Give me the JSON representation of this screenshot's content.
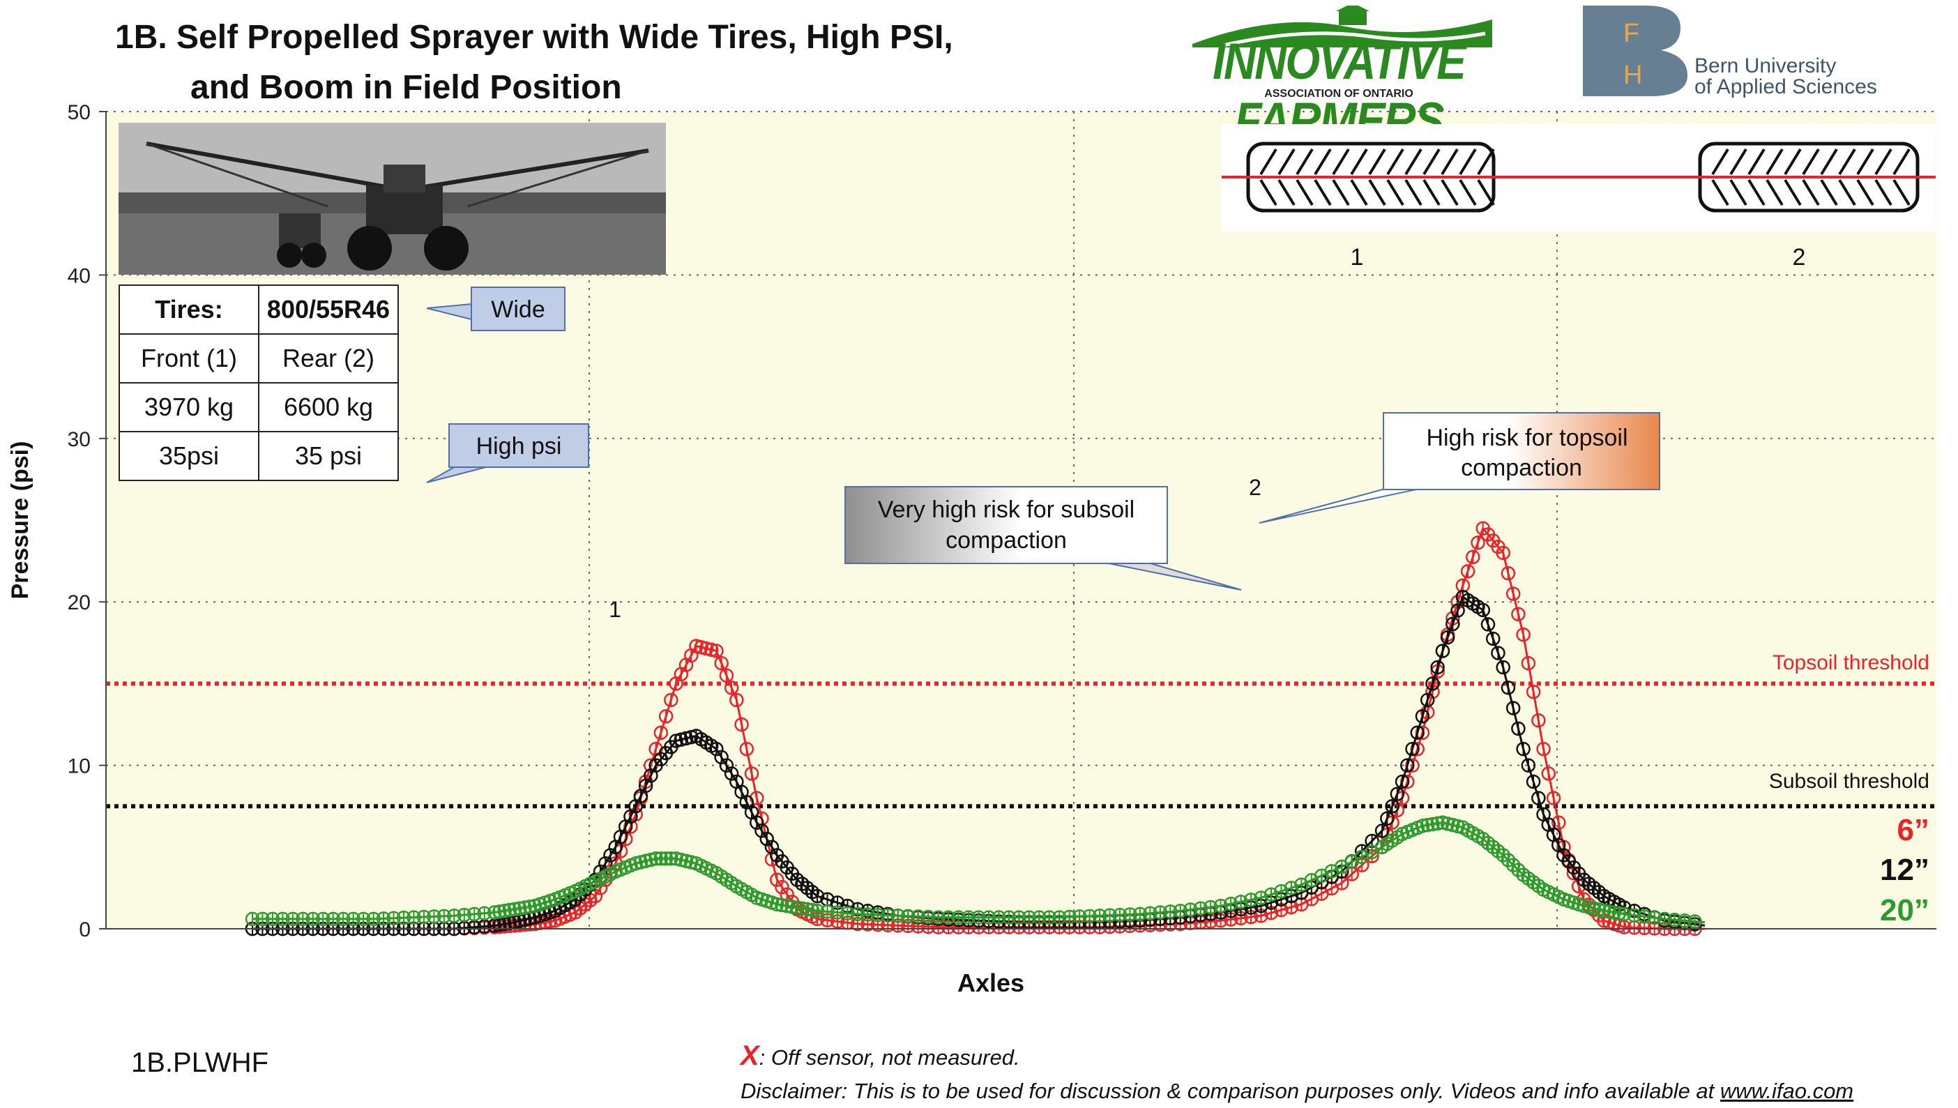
{
  "header": {
    "title_line1": "1B. Self Propelled Sprayer with Wide Tires, High PSI,",
    "title_line2": "and Boom in Field Position",
    "logo_left_main": "INNOVATIVE FARMERS",
    "logo_left_sub": "ASSOCIATION OF ONTARIO",
    "logo_right_letters": [
      "F",
      "H"
    ],
    "logo_right_line1": "Bern University",
    "logo_right_line2": "of Applied Sciences"
  },
  "table": {
    "r1c1": "Tires:",
    "r1c2": "800/55R46",
    "r2c1": "Front (1)",
    "r2c2": "Rear (2)",
    "r3c1": "3970 kg",
    "r3c2": "6600 kg",
    "r4c1": "35psi",
    "r4c2": "35 psi"
  },
  "callouts": {
    "wide": "Wide",
    "high_psi": "High psi",
    "subsoil_line1": "Very high risk for subsoil",
    "subsoil_line2": "compaction",
    "topsoil_line1": "High risk for topsoil",
    "topsoil_line2": "compaction"
  },
  "footer": {
    "code": "1B.PLWHF",
    "x_mark": "X",
    "x_note": ": Off sensor, not measured.",
    "disclaimer": "Disclaimer: This is to be used for discussion & comparison purposes only. Videos and info available at ",
    "url": "www.ifao.com"
  },
  "colors": {
    "series_6": "#e8232a",
    "series_12": "#111111",
    "series_20": "#2e9a2e",
    "plot_bg": "#fbfbe4",
    "callout_blue": "#bfcde6"
  },
  "chart_data": {
    "type": "line",
    "xlabel": "Axles",
    "ylabel": "Pressure (psi)",
    "ylim": [
      0,
      50
    ],
    "yticks": [
      0,
      10,
      20,
      30,
      40,
      50
    ],
    "y_tick_labels": [
      "0",
      "10",
      "20",
      "30",
      "40",
      "50"
    ],
    "x_axis_ticks": "none",
    "grid": "dotted",
    "peak_labels": [
      "1",
      "2"
    ],
    "axle_labels": [
      "1",
      "2"
    ],
    "thresholds": [
      {
        "label": "Topsoil threshold",
        "value": 15,
        "color": "#e8232a"
      },
      {
        "label": "Subsoil threshold",
        "value": 7.5,
        "color": "#111111"
      }
    ],
    "legend_position": "right",
    "series": [
      {
        "name": "6”",
        "color": "#e8232a",
        "x": [
          0,
          1,
          2,
          3,
          4,
          5,
          6,
          6.5,
          7,
          7.5,
          8,
          8.5,
          9,
          9.5,
          10,
          10.5,
          11,
          11.5,
          12,
          12.5,
          13,
          13.5,
          14,
          15,
          16,
          17,
          18,
          19,
          20,
          21,
          22,
          23,
          24,
          25,
          26,
          27,
          28,
          28.5,
          29,
          29.5,
          30,
          30.5,
          31,
          31.5,
          32,
          32.5,
          33,
          33.5,
          34,
          35,
          36
        ],
        "values": [
          0,
          0,
          0,
          0,
          0,
          0,
          0.1,
          0.2,
          0.3,
          0.5,
          1,
          2,
          4,
          7,
          11,
          15,
          17.3,
          17,
          14,
          8,
          3,
          1.2,
          0.6,
          0.3,
          0.2,
          0.1,
          0.1,
          0.1,
          0.1,
          0.1,
          0.2,
          0.3,
          0.5,
          0.8,
          1.5,
          2.8,
          5,
          8,
          12,
          17,
          21,
          24.5,
          23,
          18,
          11,
          5,
          1.8,
          0.5,
          0.1,
          0,
          0
        ]
      },
      {
        "name": "12”",
        "color": "#111111",
        "x": [
          0,
          1,
          2,
          3,
          4,
          5,
          6,
          6.5,
          7,
          7.5,
          8,
          8.5,
          9,
          9.5,
          10,
          10.5,
          11,
          11.5,
          12,
          12.5,
          13,
          13.5,
          14,
          15,
          16,
          17,
          18,
          19,
          20,
          21,
          22,
          23,
          24,
          25,
          26,
          27,
          28,
          28.5,
          29,
          29.5,
          30,
          30.5,
          31,
          31.5,
          32,
          32.5,
          33,
          33.5,
          34,
          35,
          36
        ],
        "values": [
          0,
          0,
          0,
          0,
          0,
          0,
          0.2,
          0.4,
          0.7,
          1.1,
          1.8,
          3,
          5,
          7.5,
          10,
          11.5,
          11.8,
          11,
          9,
          6.5,
          4.5,
          3,
          2,
          1.2,
          0.8,
          0.6,
          0.5,
          0.4,
          0.4,
          0.4,
          0.5,
          0.7,
          1,
          1.4,
          2.2,
          3.5,
          6,
          9,
          13,
          17,
          20.3,
          19.5,
          16,
          11,
          7,
          4.5,
          3,
          2,
          1.3,
          0.5,
          0.2
        ]
      },
      {
        "name": "20”",
        "color": "#2e9a2e",
        "x": [
          0,
          1,
          2,
          3,
          4,
          5,
          6,
          6.5,
          7,
          7.5,
          8,
          8.5,
          9,
          9.5,
          10,
          10.5,
          11,
          11.5,
          12,
          12.5,
          13,
          13.5,
          14,
          15,
          16,
          17,
          18,
          19,
          20,
          21,
          22,
          23,
          24,
          25,
          26,
          27,
          28,
          28.5,
          29,
          29.5,
          30,
          30.5,
          31,
          31.5,
          32,
          32.5,
          33,
          33.5,
          34,
          35,
          36
        ],
        "values": [
          0.6,
          0.6,
          0.6,
          0.6,
          0.7,
          0.8,
          1,
          1.2,
          1.4,
          1.8,
          2.3,
          2.9,
          3.5,
          4,
          4.3,
          4.3,
          4,
          3.4,
          2.6,
          1.9,
          1.5,
          1.3,
          1.1,
          0.9,
          0.8,
          0.7,
          0.7,
          0.7,
          0.7,
          0.8,
          0.9,
          1.1,
          1.4,
          1.9,
          2.7,
          3.8,
          5,
          5.8,
          6.3,
          6.5,
          6.2,
          5.5,
          4.5,
          3.3,
          2.4,
          1.8,
          1.4,
          1.1,
          0.9,
          0.6,
          0.4
        ]
      }
    ]
  }
}
